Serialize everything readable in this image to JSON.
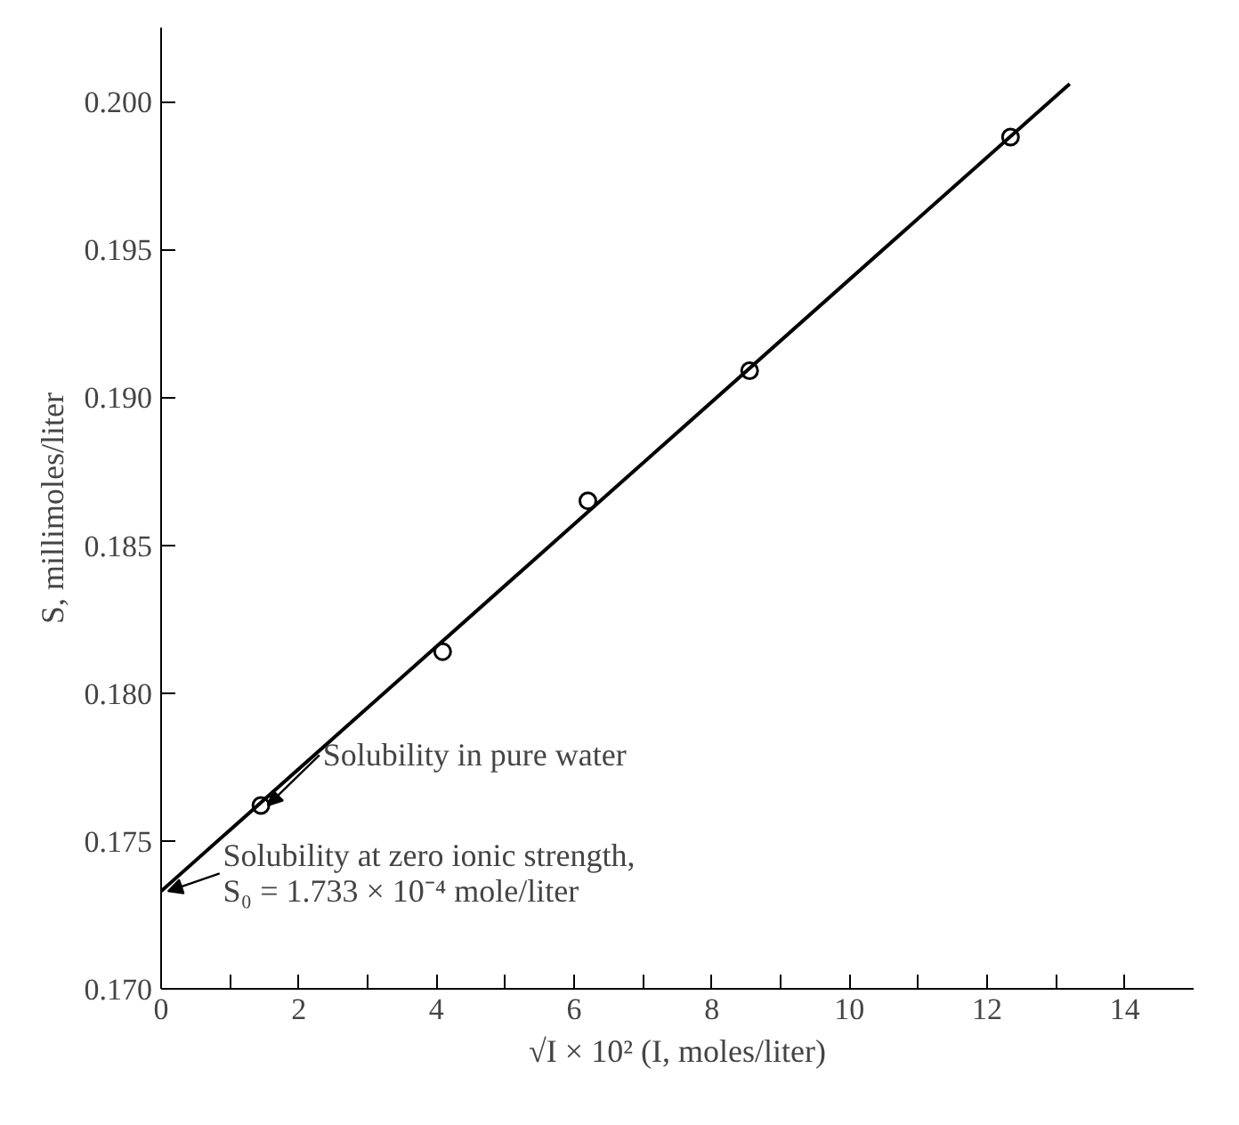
{
  "chart_data": {
    "type": "scatter",
    "xlabel": "√I × 10² (I, moles/liter)",
    "ylabel": "S, millimoles/liter",
    "xlim": [
      0,
      15
    ],
    "ylim": [
      0.17,
      0.2025
    ],
    "xticks": [
      0,
      {
        "value": 1,
        "label": null
      },
      2,
      {
        "value": 3,
        "label": null
      },
      4,
      {
        "value": 5,
        "label": null
      },
      6,
      {
        "value": 7,
        "label": null
      },
      8,
      {
        "value": 9,
        "label": null
      },
      10,
      {
        "value": 11,
        "label": null
      },
      12,
      {
        "value": 13,
        "label": null
      },
      14
    ],
    "yticks": [
      {
        "value": 0.17,
        "label": "0.170"
      },
      0.175,
      {
        "value": 0.18,
        "label": "0.180"
      },
      0.185,
      {
        "value": 0.19,
        "label": "0.190"
      },
      0.195,
      {
        "value": 0.2,
        "label": "0.200"
      }
    ],
    "grid": false,
    "series": [
      {
        "marker": "circle",
        "color": "#000000",
        "x": [
          1.45,
          4.09,
          6.2,
          8.55,
          12.34
        ],
        "values": [
          0.1762,
          0.1814,
          0.1865,
          0.1909,
          0.1988
        ]
      },
      {
        "type": "line",
        "marker": "none",
        "color": "#000000",
        "x": [
          0,
          13.2
        ],
        "values": [
          0.1733,
          0.2006
        ]
      }
    ],
    "annotations": [
      {
        "text": "Solubility in pure water",
        "x": 1.45,
        "y": 0.1762
      },
      {
        "text": "Solubility at zero ionic strength,\nS₀ = 1.733 × 10⁻⁴ mole/liter",
        "x": 0,
        "y": 0.1733
      }
    ]
  }
}
